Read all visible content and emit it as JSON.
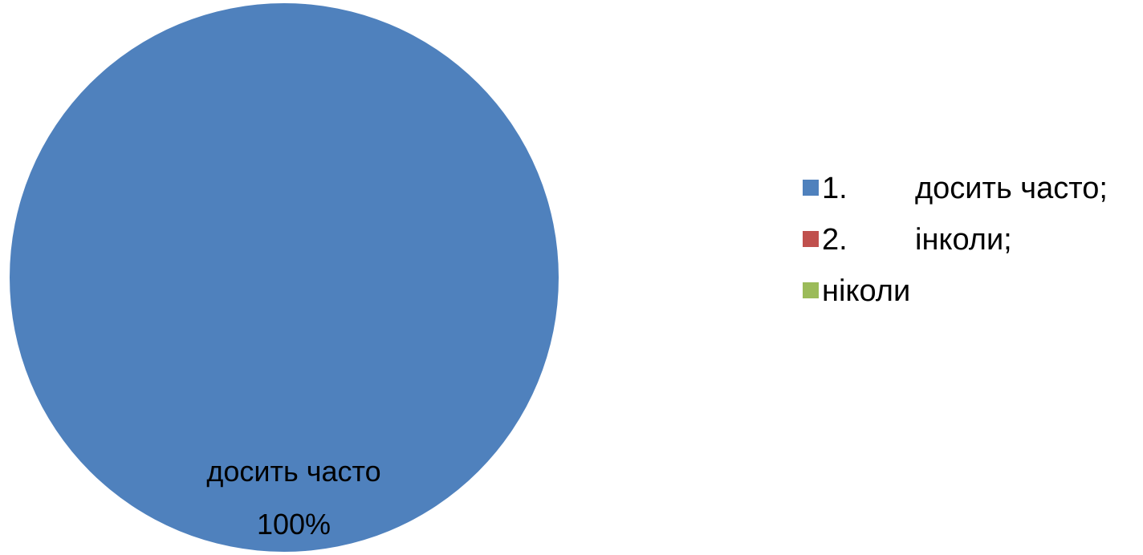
{
  "chart_data": {
    "type": "pie",
    "title": "",
    "categories": [
      "досить часто",
      "інколи",
      "ніколи"
    ],
    "values": [
      100,
      0,
      0
    ],
    "colors": [
      "#4F81BD",
      "#C0504D",
      "#9BBB59"
    ],
    "legend": {
      "placement": "right",
      "entries": [
        {
          "number": "1.",
          "label": "досить часто;",
          "color": "#4F81BD"
        },
        {
          "number": "2.",
          "label": "інколи;",
          "color": "#C0504D"
        },
        {
          "number": "",
          "label": "ніколи",
          "color": "#9BBB59"
        }
      ]
    },
    "data_labels": [
      {
        "category": "досить часто",
        "percent": "100%"
      }
    ]
  }
}
